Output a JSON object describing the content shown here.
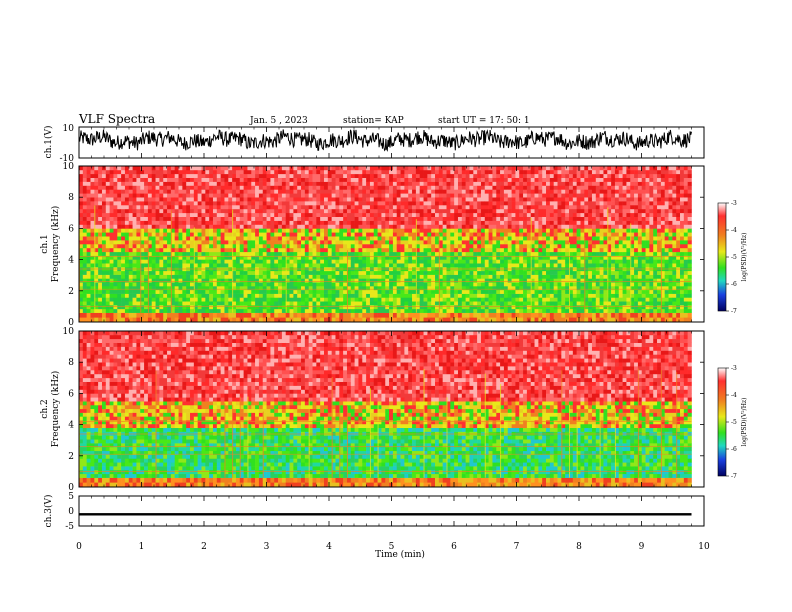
{
  "header": {
    "title": "VLF Spectra",
    "date": "Jan. 5 , 2023",
    "station": "station= KAP",
    "start": "start UT = 17: 50: 1"
  },
  "chart_data": [
    {
      "type": "line",
      "id": "ch1_waveform",
      "ylabel": "ch.1(V)",
      "ylim": [
        -10,
        10
      ],
      "y_ticks": [
        "10",
        "-10"
      ],
      "xlim": [
        0,
        10
      ],
      "x_end": 9.8,
      "description_units": "V",
      "envelope": {
        "upper_range": [
          0,
          9
        ],
        "lower_range": [
          -5,
          0
        ]
      }
    },
    {
      "type": "heatmap",
      "id": "ch1_spectrogram",
      "ylabel": "ch.1\nFrequency (kHz)",
      "ylabel_lines": [
        "ch.1",
        "Frequency (kHz)"
      ],
      "ylim": [
        0,
        10
      ],
      "y_ticks": [
        "0",
        "2",
        "4",
        "6",
        "8",
        "10"
      ],
      "xlim": [
        0,
        10
      ],
      "x_end": 9.8,
      "bands": [
        {
          "from_khz": 0,
          "to_khz": 0.6,
          "level": "orange"
        },
        {
          "from_khz": 0.6,
          "to_khz": 4.5,
          "level": "green"
        },
        {
          "from_khz": 4.5,
          "to_khz": 6.0,
          "level": "yellow-red"
        },
        {
          "from_khz": 6.0,
          "to_khz": 10,
          "level": "red"
        }
      ],
      "colorbar": {
        "label": "log(PSD)(V²/Hz)",
        "min": -7,
        "max": -3,
        "ticks": [
          "-3",
          "-4",
          "-5",
          "-6",
          "-7"
        ]
      }
    },
    {
      "type": "heatmap",
      "id": "ch2_spectrogram",
      "ylabel": "ch.2\nFrequency (kHz)",
      "ylabel_lines": [
        "ch.2",
        "Frequency (kHz)"
      ],
      "ylim": [
        0,
        10
      ],
      "y_ticks": [
        "0",
        "2",
        "4",
        "6",
        "8",
        "10"
      ],
      "xlim": [
        0,
        10
      ],
      "x_end": 9.8,
      "bands": [
        {
          "from_khz": 0,
          "to_khz": 0.6,
          "level": "orange"
        },
        {
          "from_khz": 0.6,
          "to_khz": 3.8,
          "level": "green-cyan"
        },
        {
          "from_khz": 3.8,
          "to_khz": 5.5,
          "level": "yellow-red"
        },
        {
          "from_khz": 5.5,
          "to_khz": 10,
          "level": "red"
        }
      ],
      "colorbar": {
        "label": "log(PSD)(V²/Hz)",
        "min": -7,
        "max": -3,
        "ticks": [
          "-3",
          "-4",
          "-5",
          "-6",
          "-7"
        ]
      }
    },
    {
      "type": "line",
      "id": "ch3_waveform",
      "ylabel": "ch.3(V)",
      "ylim": [
        -5,
        5
      ],
      "y_ticks": [
        "5",
        "0",
        "-5"
      ],
      "xlim": [
        0,
        10
      ],
      "x_end": 9.8,
      "trace_range": [
        -0.7,
        -1.5
      ]
    }
  ],
  "xaxis": {
    "label": "Time (min)",
    "ticks": [
      "0",
      "1",
      "2",
      "3",
      "4",
      "5",
      "6",
      "7",
      "8",
      "9",
      "10"
    ]
  },
  "colors": {
    "red": "#e62020",
    "orange": "#f07a1c",
    "yellow": "#e6e61a",
    "green": "#33e61a",
    "cyan": "#1ae6c8",
    "background": "#ffffff",
    "trace": "#000000"
  }
}
